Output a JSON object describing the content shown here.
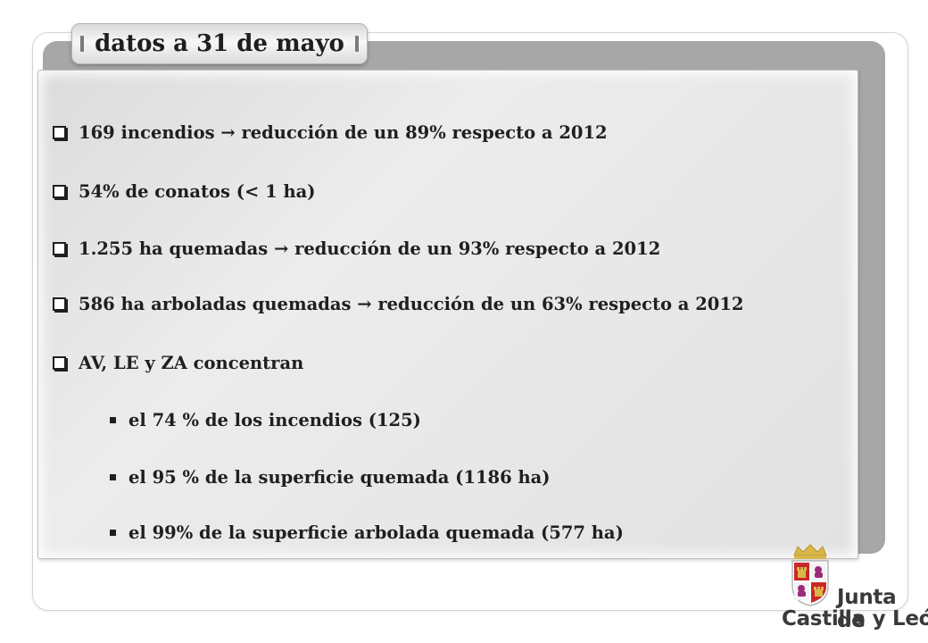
{
  "slide": {
    "title": "datos a 31 de mayo",
    "items": [
      {
        "type": "checkbox",
        "text": "169 incendios → reducción de un 89% respecto a 2012"
      },
      {
        "type": "checkbox",
        "text": "54% de conatos (< 1 ha)"
      },
      {
        "type": "checkbox",
        "text": "1.255 ha quemadas → reducción de un  93% respecto a 2012"
      },
      {
        "type": "checkbox",
        "text": "586 ha arboladas quemadas → reducción de un  63% respecto a 2012"
      },
      {
        "type": "checkbox",
        "text": "AV, LE y ZA concentran"
      },
      {
        "type": "bullet",
        "text": "el 74 % de los incendios (125)"
      },
      {
        "type": "bullet",
        "text": "el 95 % de la superficie quemada (1186 ha)"
      },
      {
        "type": "bullet",
        "text": "el 99% de la superficie arbolada quemada (577 ha)"
      }
    ]
  },
  "logo": {
    "line1": "Junta de",
    "line2": "Castilla y León",
    "icon": "coat-of-arms-icon",
    "colors": {
      "red": "#c8282a",
      "gold": "#d9b64a",
      "gray": "#3a3a3a"
    }
  }
}
